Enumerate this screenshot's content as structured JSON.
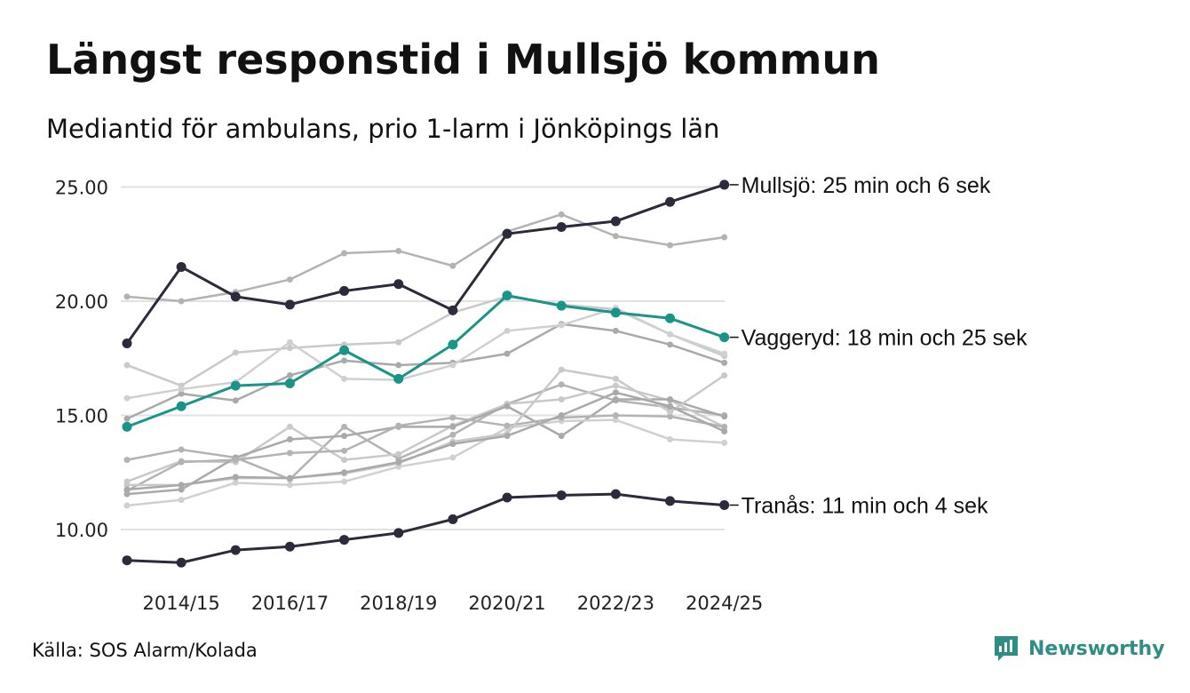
{
  "title": "Längst responstid i Mullsjö kommun",
  "subtitle": "Mediantid för ambulans, prio 1-larm i Jönköpings län",
  "source": "Källa: SOS Alarm/Kolada",
  "brand": "Newsworthy",
  "colors": {
    "highlight_dark": "#2b2b3b",
    "highlight_teal": "#1a9488",
    "background_lines": [
      "#b3b3b3",
      "#c9c9c9",
      "#a9a9a9",
      "#d0d0d0"
    ],
    "grid": "#e2e2e2",
    "brand": "#2f8e83"
  },
  "chart_data": {
    "type": "line",
    "periods": [
      "2013/14",
      "2014/15",
      "2015/16",
      "2016/17",
      "2017/18",
      "2018/19",
      "2019/20",
      "2020/21",
      "2021/22",
      "2022/23",
      "2023/24",
      "2024/25"
    ],
    "xticks": [
      "2014/15",
      "2016/17",
      "2018/19",
      "2020/21",
      "2022/23",
      "2024/25"
    ],
    "yticks": [
      "25.00",
      "20.00",
      "15.00",
      "10.00"
    ],
    "ylim": [
      7.5,
      26.5
    ],
    "ylabel": "",
    "xlabel": "",
    "highlight_series": [
      {
        "name": "Mullsjö",
        "label": "Mullsjö: 25 min och 6 sek",
        "color": "#2b2b3b",
        "values": [
          18.15,
          21.5,
          20.2,
          19.85,
          20.45,
          20.75,
          19.6,
          22.95,
          23.25,
          23.5,
          24.35,
          25.1
        ]
      },
      {
        "name": "Vaggeryd",
        "label": "Vaggeryd: 18 min och 25 sek",
        "color": "#1a9488",
        "values": [
          14.5,
          15.4,
          16.3,
          16.4,
          17.85,
          16.6,
          18.1,
          20.25,
          19.8,
          19.5,
          19.25,
          18.42
        ]
      },
      {
        "name": "Tranås",
        "label": "Tranås: 11 min och 4 sek",
        "color": "#2b2b3b",
        "values": [
          8.65,
          8.55,
          9.1,
          9.25,
          9.55,
          9.85,
          10.45,
          11.4,
          11.5,
          11.55,
          11.25,
          11.07
        ]
      }
    ],
    "background_series": [
      {
        "values": [
          20.2,
          20.0,
          20.4,
          20.95,
          22.1,
          22.2,
          21.55,
          23.05,
          23.8,
          22.85,
          22.45,
          22.8
        ]
      },
      {
        "values": [
          17.2,
          16.3,
          17.75,
          17.95,
          18.1,
          18.2,
          19.5,
          20.2,
          19.85,
          19.65,
          18.55,
          17.6
        ]
      },
      {
        "values": [
          14.85,
          15.95,
          15.65,
          16.75,
          17.4,
          17.2,
          17.3,
          17.7,
          19.0,
          18.7,
          18.1,
          17.3
        ]
      },
      {
        "values": [
          15.75,
          16.15,
          16.45,
          18.2,
          16.6,
          16.55,
          17.2,
          18.7,
          18.95,
          19.7,
          18.55,
          17.7
        ]
      },
      {
        "values": [
          13.05,
          13.5,
          13.15,
          12.2,
          14.5,
          13.1,
          14.15,
          15.5,
          16.35,
          15.65,
          15.35,
          15.0
        ]
      },
      {
        "values": [
          12.1,
          13.0,
          12.95,
          14.5,
          13.05,
          13.3,
          14.55,
          15.5,
          15.7,
          16.3,
          15.65,
          14.5
        ]
      },
      {
        "values": [
          11.55,
          11.75,
          13.15,
          13.95,
          14.1,
          14.5,
          14.5,
          15.4,
          14.1,
          15.7,
          15.7,
          14.95
        ]
      },
      {
        "values": [
          11.05,
          11.3,
          12.05,
          11.95,
          12.1,
          12.75,
          13.15,
          14.45,
          14.75,
          14.8,
          13.95,
          13.8
        ]
      },
      {
        "values": [
          11.7,
          12.95,
          13.05,
          13.35,
          13.45,
          14.55,
          14.9,
          14.55,
          14.9,
          15.0,
          14.95,
          14.5
        ]
      },
      {
        "values": [
          11.95,
          11.95,
          12.25,
          12.25,
          12.45,
          12.9,
          13.85,
          14.2,
          17.0,
          16.6,
          15.15,
          16.75
        ]
      },
      {
        "values": [
          11.75,
          11.95,
          12.3,
          12.25,
          12.5,
          12.95,
          13.75,
          14.1,
          15.0,
          16.0,
          15.4,
          14.3
        ]
      }
    ]
  }
}
